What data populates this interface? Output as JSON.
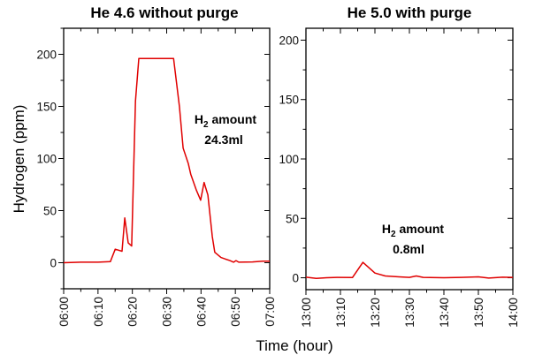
{
  "chart_data": [
    {
      "type": "line",
      "title": "He 4.6 without purge",
      "ylabel": "Hydrogen (ppm)",
      "xlabel": "Time (hour)",
      "xlim": [
        "06:00",
        "07:00"
      ],
      "ylim": [
        -25,
        225
      ],
      "xticks": [
        "06:00",
        "06:10",
        "06:20",
        "06:30",
        "06:40",
        "06:50",
        "07:00"
      ],
      "yticks": [
        0,
        50,
        100,
        150,
        200
      ],
      "grid": false,
      "line_color": "#e00000",
      "annotation": {
        "line1": "H",
        "sub": "2",
        "line1_rest": " amount",
        "line2": "24.3ml"
      },
      "x": [
        "06:00",
        "06:05",
        "06:10",
        "06:13.6",
        "06:15",
        "06:17",
        "06:17.8",
        "06:18.8",
        "06:19.8",
        "06:20.9",
        "06:21.9",
        "06:32",
        "06:33.7",
        "06:34.8",
        "06:36.3",
        "06:37",
        "06:38.6",
        "06:39.9",
        "06:40.9",
        "06:42",
        "06:43.3",
        "06:44",
        "06:45.8",
        "06:48.4",
        "06:49.5",
        "06:50.2",
        "06:51",
        "06:55",
        "06:58",
        "07:00"
      ],
      "y": [
        0,
        0.5,
        0.5,
        1,
        13,
        11,
        43,
        19,
        16,
        155,
        196,
        196,
        150,
        110,
        95,
        85,
        70,
        60,
        77,
        65,
        25,
        10,
        5,
        2,
        0.5,
        2,
        0.5,
        0.8,
        1.5,
        1.5
      ]
    },
    {
      "type": "line",
      "title": "He 5.0 with purge",
      "ylabel": "Hydrogen (ppm)",
      "xlabel": "Time (hour)",
      "xlim": [
        "13:00",
        "14:00"
      ],
      "ylim": [
        -10,
        210
      ],
      "xticks": [
        "13:00",
        "13:10",
        "13:20",
        "13:30",
        "13:40",
        "13:50",
        "14:00"
      ],
      "yticks": [
        0,
        50,
        100,
        150,
        200
      ],
      "grid": false,
      "line_color": "#e00000",
      "annotation": {
        "line1": "H",
        "sub": "2",
        "line1_rest": " amount",
        "line2": "0.8ml"
      },
      "x": [
        "13:00",
        "13:03",
        "13:06",
        "13:09",
        "13:13.5",
        "13:16.5",
        "13:20",
        "13:23",
        "13:27",
        "13:30",
        "13:32",
        "13:34",
        "13:40",
        "13:45",
        "13:50",
        "13:53",
        "13:57",
        "14:00"
      ],
      "y": [
        0.5,
        -0.5,
        0,
        0.3,
        0.2,
        13,
        4,
        1.5,
        0.8,
        0.3,
        1.5,
        0.3,
        0,
        0.3,
        0.8,
        -0.3,
        0.5,
        0.3
      ]
    }
  ]
}
